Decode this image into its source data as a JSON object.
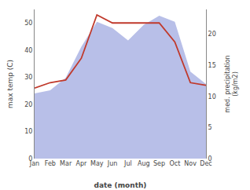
{
  "chart_data": {
    "type": "line",
    "categories": [
      "Jan",
      "Feb",
      "Mar",
      "Apr",
      "May",
      "Jun",
      "Jul",
      "Aug",
      "Sep",
      "Oct",
      "Nov",
      "Dec"
    ],
    "xlabel": "date (month)",
    "ylabel": "max temp (C)",
    "y2label": "med. precipitation\n(kg/m2)",
    "series": [
      {
        "type": "area",
        "axis": "y2",
        "color": "#b8bfe8",
        "values": [
          10.5,
          11,
          13,
          18,
          22,
          21,
          19,
          21.5,
          23,
          22,
          14,
          12
        ]
      },
      {
        "type": "line",
        "axis": "y",
        "color": "#c0392b",
        "values": [
          26,
          28,
          29,
          37,
          53,
          50,
          50,
          50,
          50,
          43,
          28,
          27
        ]
      }
    ],
    "ylim": [
      0,
      55
    ],
    "yticks": [
      0,
      10,
      20,
      30,
      40,
      50
    ],
    "y2lim": [
      0,
      24
    ],
    "y2ticks": [
      0,
      5,
      10,
      15,
      20
    ],
    "grid": false
  }
}
